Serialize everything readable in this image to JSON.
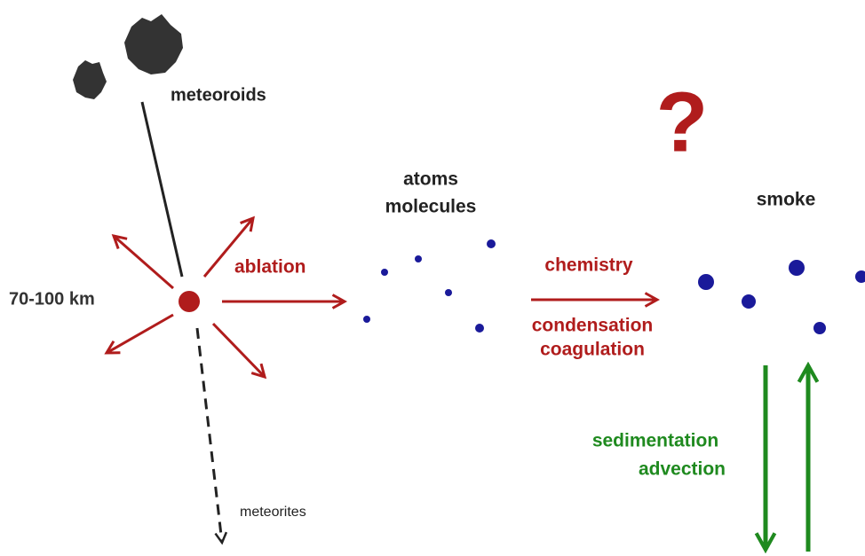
{
  "labels": {
    "meteoroids": "meteoroids",
    "altitude": "70-100 km",
    "ablation": "ablation",
    "atoms": "atoms",
    "molecules": "molecules",
    "chemistry": "chemistry",
    "condensation": "condensation",
    "coagulation": "coagulation",
    "question": "?",
    "smoke": "smoke",
    "sedimentation": "sedimentation",
    "advection": "advection",
    "meteorites": "meteorites"
  }
}
